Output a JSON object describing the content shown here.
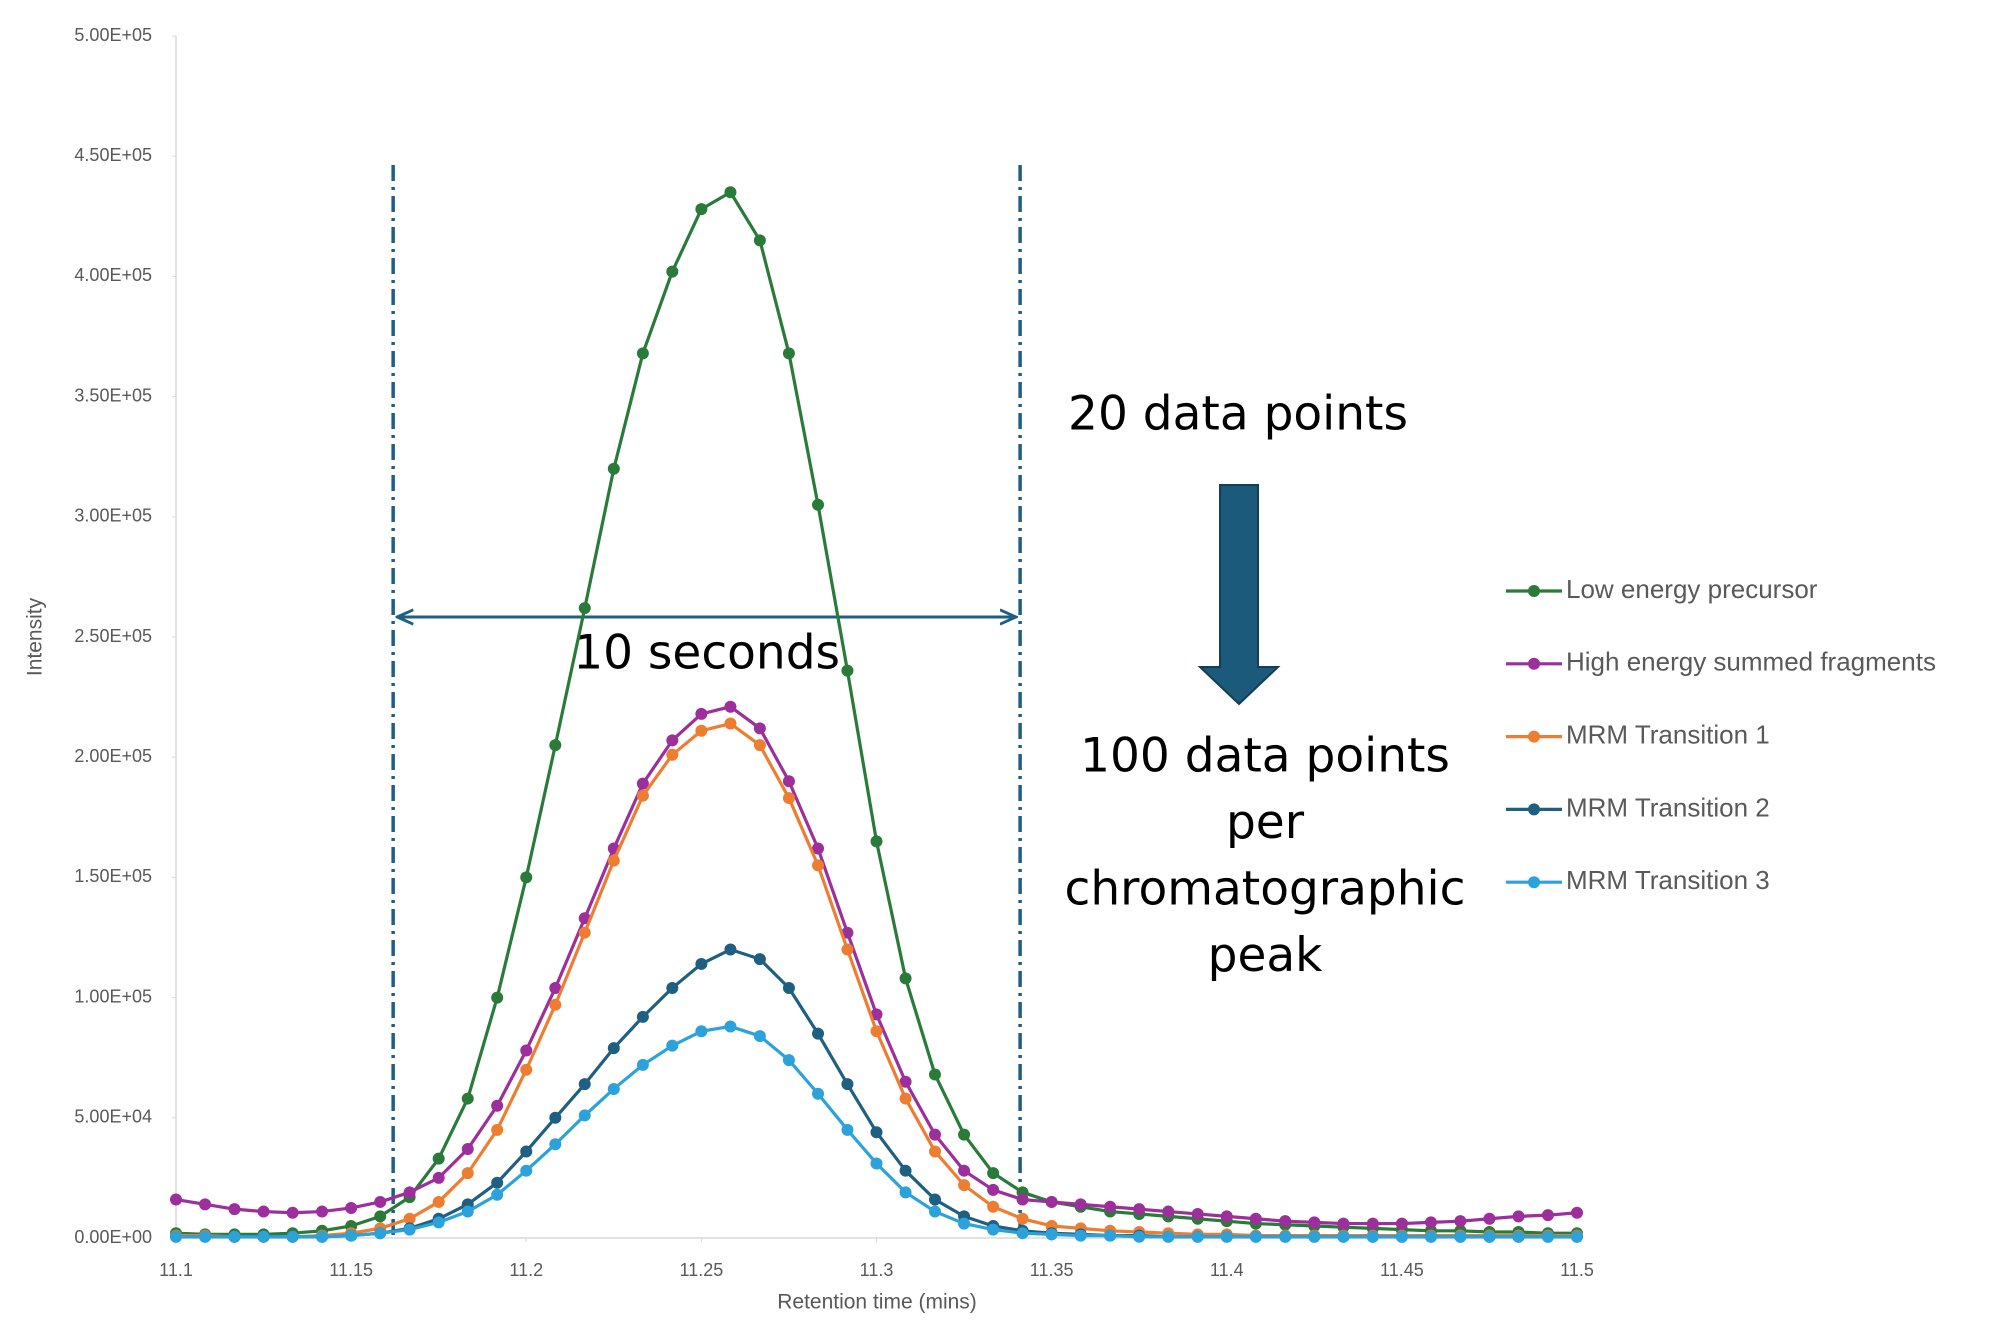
{
  "chart_data": {
    "type": "line",
    "x_label": "Retention time (mins)",
    "y_label": "Intensity",
    "xlim": [
      11.1,
      11.5
    ],
    "xticks": [
      11.1,
      11.15,
      11.2,
      11.25,
      11.3,
      11.35,
      11.4,
      11.45,
      11.5
    ],
    "ylim": [
      0,
      500000
    ],
    "yticks": [
      {
        "value": 0,
        "label": "0.00E+00"
      },
      {
        "value": 50000,
        "label": "5.00E+04"
      },
      {
        "value": 100000,
        "label": "1.00E+05"
      },
      {
        "value": 150000,
        "label": "1.50E+05"
      },
      {
        "value": 200000,
        "label": "2.00E+05"
      },
      {
        "value": 250000,
        "label": "2.50E+05"
      },
      {
        "value": 300000,
        "label": "3.00E+05"
      },
      {
        "value": 350000,
        "label": "3.50E+05"
      },
      {
        "value": 400000,
        "label": "4.00E+05"
      },
      {
        "value": 450000,
        "label": "4.50E+05"
      },
      {
        "value": 500000,
        "label": "5.00E+05"
      }
    ],
    "grid": false,
    "legend_position": "right",
    "x": [
      11.1,
      11.1083,
      11.1167,
      11.125,
      11.1333,
      11.1417,
      11.15,
      11.1583,
      11.1667,
      11.175,
      11.1833,
      11.1917,
      11.2,
      11.2083,
      11.2167,
      11.225,
      11.2333,
      11.2417,
      11.25,
      11.2583,
      11.2667,
      11.275,
      11.2833,
      11.2917,
      11.3,
      11.3083,
      11.3167,
      11.325,
      11.3333,
      11.3417,
      11.35,
      11.3583,
      11.3667,
      11.375,
      11.3833,
      11.3917,
      11.4,
      11.4083,
      11.4167,
      11.425,
      11.4333,
      11.4417,
      11.45,
      11.4583,
      11.4667,
      11.475,
      11.4833,
      11.4917,
      11.5
    ],
    "series": [
      {
        "name": "Low energy precursor",
        "color": "#2a7b3a",
        "values": [
          2000,
          1500,
          1500,
          1500,
          2000,
          3000,
          5000,
          9000,
          17000,
          33000,
          58000,
          100000,
          150000,
          205000,
          262000,
          320000,
          368000,
          402000,
          428000,
          435000,
          415000,
          368000,
          305000,
          236000,
          165000,
          108000,
          68000,
          43000,
          27000,
          19000,
          15000,
          13000,
          11000,
          10000,
          9000,
          8000,
          7000,
          6000,
          5500,
          5000,
          4500,
          4000,
          3500,
          3000,
          3000,
          2500,
          2500,
          2000,
          2000
        ]
      },
      {
        "name": "High energy summed fragments",
        "color": "#9c2f9c",
        "values": [
          16000,
          14000,
          12000,
          11000,
          10500,
          11000,
          12500,
          15000,
          19000,
          25000,
          37000,
          55000,
          78000,
          104000,
          133000,
          162000,
          189000,
          207000,
          218000,
          221000,
          212000,
          190000,
          162000,
          127000,
          93000,
          65000,
          43000,
          28000,
          20000,
          16000,
          15000,
          14000,
          13000,
          12000,
          11000,
          10000,
          9000,
          8000,
          7000,
          6500,
          6000,
          6000,
          6000,
          6500,
          7000,
          8000,
          9000,
          9500,
          10500
        ]
      },
      {
        "name": "MRM Transition 1",
        "color": "#ed7d31",
        "values": [
          1000,
          1000,
          500,
          500,
          500,
          1000,
          2000,
          4000,
          8000,
          15000,
          27000,
          45000,
          70000,
          97000,
          127000,
          157000,
          184000,
          201000,
          211000,
          214000,
          205000,
          183000,
          155000,
          120000,
          86000,
          58000,
          36000,
          22000,
          13000,
          8000,
          5000,
          4000,
          3000,
          2500,
          2000,
          1500,
          1500,
          1000,
          1000,
          1000,
          1000,
          1000,
          1000,
          1000,
          1000,
          1000,
          1000,
          1000,
          1000
        ]
      },
      {
        "name": "MRM Transition 2",
        "color": "#1f5f82",
        "values": [
          500,
          500,
          500,
          500,
          500,
          500,
          1000,
          2000,
          4000,
          8000,
          14000,
          23000,
          36000,
          50000,
          64000,
          79000,
          92000,
          104000,
          114000,
          120000,
          116000,
          104000,
          85000,
          64000,
          44000,
          28000,
          16000,
          9000,
          5000,
          3000,
          2000,
          1500,
          1000,
          1000,
          500,
          500,
          500,
          500,
          500,
          500,
          500,
          500,
          500,
          500,
          500,
          500,
          500,
          500,
          500
        ]
      },
      {
        "name": "MRM Transition 3",
        "color": "#2ba3da",
        "values": [
          500,
          500,
          500,
          500,
          500,
          500,
          1000,
          2000,
          3500,
          6500,
          11000,
          18000,
          28000,
          39000,
          51000,
          62000,
          72000,
          80000,
          86000,
          88000,
          84000,
          74000,
          60000,
          45000,
          31000,
          19000,
          11000,
          6000,
          3500,
          2000,
          1500,
          1000,
          1000,
          500,
          500,
          500,
          500,
          500,
          500,
          500,
          500,
          500,
          500,
          500,
          500,
          500,
          500,
          500,
          500
        ]
      }
    ],
    "reference_lines": [
      11.162,
      11.341
    ],
    "reference_color": "#1f5f82",
    "span_label": "10 seconds",
    "before_label": "20 data points",
    "after_label_lines": [
      "100 data points",
      "per",
      "chromatographic",
      "peak"
    ]
  }
}
